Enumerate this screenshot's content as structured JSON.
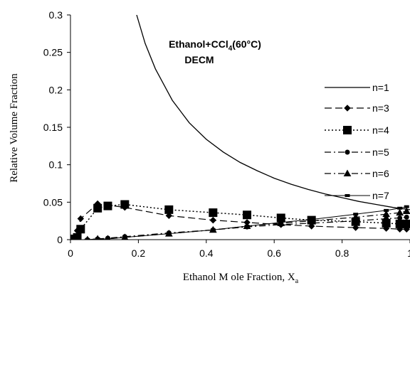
{
  "chart_data": {
    "type": "line",
    "title": "",
    "annotation": {
      "line1_prefix": "Ethanol+CCl",
      "line1_sub": "4",
      "line1_suffix": "(60°C)",
      "line2": "DECM"
    },
    "xlabel": {
      "main": "Ethanol M ole Fraction, X",
      "sub": "a"
    },
    "ylabel": "Relative Volume Fraction",
    "xlim": [
      0,
      1
    ],
    "ylim": [
      0,
      0.3
    ],
    "xticks": [
      0,
      0.2,
      0.4,
      0.6,
      0.8,
      1
    ],
    "xtick_labels": [
      "0",
      "0.2",
      "0.4",
      "0.6",
      "0.8",
      "1"
    ],
    "yticks": [
      0,
      0.05,
      0.1,
      0.15,
      0.2,
      0.25,
      0.3
    ],
    "ytick_labels": [
      "0",
      "0.05",
      "0.1",
      "0.15",
      "0.2",
      "0.25",
      "0.3"
    ],
    "grid": false,
    "legend_position": "right",
    "series": [
      {
        "name": "n=1",
        "style": "solid",
        "marker": "none",
        "width": 1.3,
        "x": [
          0.195,
          0.22,
          0.25,
          0.3,
          0.35,
          0.4,
          0.45,
          0.5,
          0.55,
          0.6,
          0.65,
          0.7,
          0.75,
          0.8,
          0.85,
          0.9,
          0.95,
          1.0
        ],
        "y": [
          0.3,
          0.262,
          0.228,
          0.186,
          0.156,
          0.134,
          0.117,
          0.103,
          0.092,
          0.082,
          0.074,
          0.067,
          0.061,
          0.056,
          0.051,
          0.047,
          0.043,
          0.04
        ]
      },
      {
        "name": "n=3",
        "style": "longdash",
        "marker": "diamond",
        "width": 1.2,
        "x": [
          0.0,
          0.005,
          0.012,
          0.02,
          0.03,
          0.08,
          0.16,
          0.29,
          0.42,
          0.52,
          0.62,
          0.71,
          0.84,
          0.93,
          0.97,
          0.99
        ],
        "y": [
          0.0,
          0.0,
          0.004,
          0.012,
          0.028,
          0.048,
          0.043,
          0.032,
          0.026,
          0.023,
          0.02,
          0.018,
          0.016,
          0.015,
          0.014,
          0.014
        ]
      },
      {
        "name": "n=4",
        "style": "dotted",
        "marker": "square",
        "width": 1.5,
        "x": [
          0.0,
          0.005,
          0.012,
          0.02,
          0.03,
          0.08,
          0.11,
          0.16,
          0.29,
          0.42,
          0.52,
          0.62,
          0.71,
          0.84,
          0.93,
          0.97,
          0.99
        ],
        "y": [
          0.0,
          0.0,
          0.001,
          0.003,
          0.014,
          0.042,
          0.045,
          0.047,
          0.04,
          0.036,
          0.033,
          0.029,
          0.026,
          0.024,
          0.022,
          0.021,
          0.021
        ]
      },
      {
        "name": "n=5",
        "style": "dashdot",
        "marker": "circle",
        "width": 1.2,
        "x": [
          0.0,
          0.02,
          0.05,
          0.08,
          0.11,
          0.16,
          0.29,
          0.42,
          0.52,
          0.62,
          0.71,
          0.84,
          0.93,
          0.97,
          0.99
        ],
        "y": [
          0.0,
          0.0,
          0.0,
          0.001,
          0.002,
          0.004,
          0.009,
          0.013,
          0.017,
          0.02,
          0.022,
          0.025,
          0.028,
          0.029,
          0.03
        ]
      },
      {
        "name": "n=6",
        "style": "dashdot",
        "marker": "triangle",
        "width": 1.2,
        "x": [
          0.0,
          0.02,
          0.05,
          0.08,
          0.11,
          0.16,
          0.29,
          0.42,
          0.52,
          0.62,
          0.71,
          0.84,
          0.93,
          0.97,
          0.99
        ],
        "y": [
          0.0,
          0.0,
          0.0,
          0.001,
          0.001,
          0.003,
          0.008,
          0.013,
          0.018,
          0.022,
          0.025,
          0.03,
          0.034,
          0.036,
          0.038
        ]
      },
      {
        "name": "n=7",
        "style": "solid",
        "marker": "dash",
        "width": 1.0,
        "x": [
          0.0,
          0.02,
          0.05,
          0.08,
          0.11,
          0.16,
          0.29,
          0.42,
          0.52,
          0.62,
          0.71,
          0.84,
          0.93,
          0.97,
          0.99
        ],
        "y": [
          0.0,
          0.0,
          0.0,
          0.001,
          0.001,
          0.003,
          0.008,
          0.013,
          0.018,
          0.023,
          0.027,
          0.034,
          0.039,
          0.042,
          0.044
        ]
      }
    ]
  }
}
